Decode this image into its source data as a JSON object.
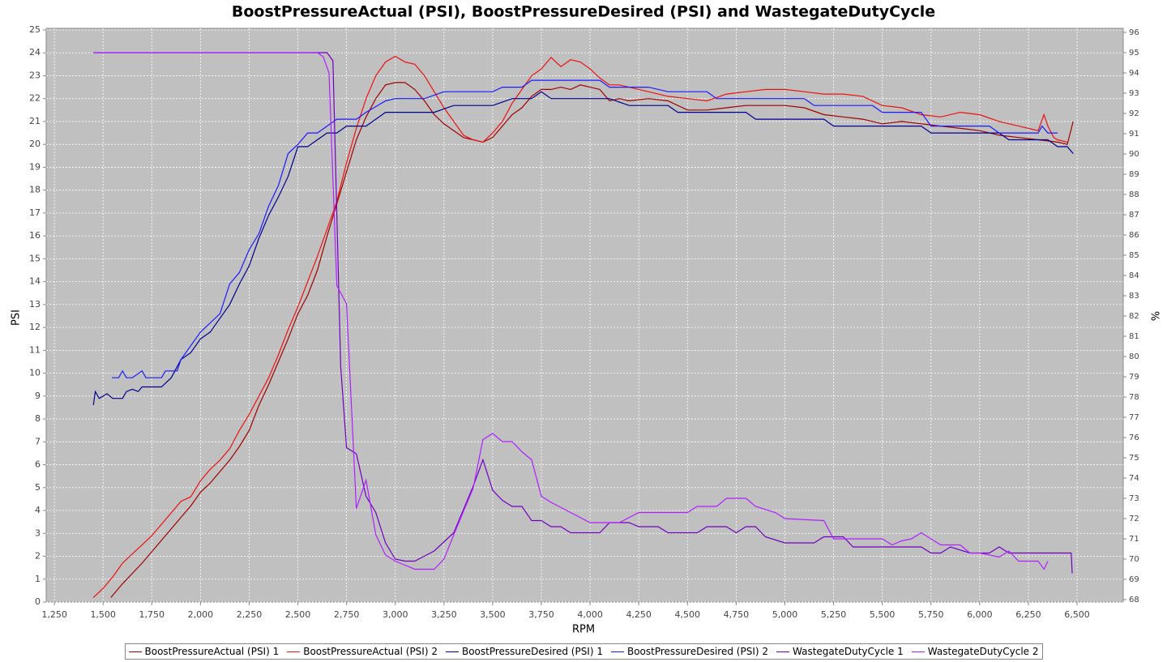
{
  "chart_data": {
    "type": "line",
    "title": "BoostPressureActual (PSI), BoostPressureDesired (PSI) and WastegateDutyCycle",
    "x_label": "RPM",
    "y_label": "PSI",
    "y2_label": "%",
    "xlim": [
      1208,
      6737
    ],
    "ylim": [
      0,
      25.07
    ],
    "y2lim": [
      67.88,
      96.2
    ],
    "grid": true,
    "xticks": [
      {
        "value": 1250,
        "label": "1,250"
      },
      {
        "value": 1500,
        "label": "1,500"
      },
      {
        "value": 1750,
        "label": "1,750"
      },
      {
        "value": 2000,
        "label": "2,000"
      },
      {
        "value": 2250,
        "label": "2,250"
      },
      {
        "value": 2500,
        "label": "2,500"
      },
      {
        "value": 2750,
        "label": "2,750"
      },
      {
        "value": 3000,
        "label": "3,000"
      },
      {
        "value": 3250,
        "label": "3,250"
      },
      {
        "value": 3500,
        "label": "3,500"
      },
      {
        "value": 3750,
        "label": "3,750"
      },
      {
        "value": 4000,
        "label": "4,000"
      },
      {
        "value": 4250,
        "label": "4,250"
      },
      {
        "value": 4500,
        "label": "4,500"
      },
      {
        "value": 4750,
        "label": "4,750"
      },
      {
        "value": 5000,
        "label": "5,000"
      },
      {
        "value": 5250,
        "label": "5,250"
      },
      {
        "value": 5500,
        "label": "5,500"
      },
      {
        "value": 5750,
        "label": "5,750"
      },
      {
        "value": 6000,
        "label": "6,000"
      },
      {
        "value": 6250,
        "label": "6,250"
      },
      {
        "value": 6500,
        "label": "6,500"
      }
    ],
    "yticks": [
      0,
      1,
      2,
      3,
      4,
      5,
      6,
      7,
      8,
      9,
      10,
      11,
      12,
      13,
      14,
      15,
      16,
      17,
      18,
      19,
      20,
      21,
      22,
      23,
      24,
      25
    ],
    "y2ticks": [
      68,
      69,
      70,
      71,
      72,
      73,
      74,
      75,
      76,
      77,
      78,
      79,
      80,
      81,
      82,
      83,
      84,
      85,
      86,
      87,
      88,
      89,
      90,
      91,
      92,
      93,
      94,
      95,
      96
    ],
    "series": [
      {
        "name": "BoostPressureActual (PSI) 1",
        "color": "#a00000",
        "x": [
          1540,
          1600,
          1700,
          1750,
          1800,
          1850,
          1900,
          1950,
          2000,
          2050,
          2100,
          2150,
          2200,
          2250,
          2300,
          2350,
          2400,
          2450,
          2500,
          2550,
          2600,
          2650,
          2700,
          2750,
          2800,
          2850,
          2900,
          2950,
          3000,
          3050,
          3100,
          3150,
          3200,
          3250,
          3300,
          3350,
          3400,
          3450,
          3500,
          3550,
          3600,
          3650,
          3700,
          3750,
          3800,
          3850,
          3900,
          3950,
          4000,
          4050,
          4100,
          4150,
          4200,
          4300,
          4400,
          4500,
          4600,
          4700,
          4800,
          4900,
          5000,
          5100,
          5200,
          5300,
          5400,
          5500,
          5600,
          5700,
          5800,
          5900,
          6000,
          6100,
          6200,
          6300,
          6400,
          6450,
          6480
        ],
        "values": [
          0.2,
          0.8,
          1.7,
          2.2,
          2.7,
          3.2,
          3.7,
          4.2,
          4.8,
          5.2,
          5.7,
          6.2,
          6.8,
          7.5,
          8.6,
          9.5,
          10.5,
          11.5,
          12.6,
          13.4,
          14.5,
          16.0,
          17.4,
          18.8,
          20.2,
          21.2,
          22.0,
          22.6,
          22.7,
          22.7,
          22.4,
          21.9,
          21.3,
          20.9,
          20.6,
          20.3,
          20.2,
          20.1,
          20.3,
          20.8,
          21.3,
          21.6,
          22.1,
          22.4,
          22.4,
          22.5,
          22.4,
          22.6,
          22.5,
          22.4,
          21.9,
          22.0,
          21.9,
          22.0,
          21.9,
          21.5,
          21.5,
          21.6,
          21.7,
          21.7,
          21.7,
          21.6,
          21.3,
          21.2,
          21.1,
          20.9,
          21.0,
          20.9,
          20.8,
          20.7,
          20.6,
          20.4,
          20.3,
          20.2,
          20.1,
          20.0,
          21.0
        ]
      },
      {
        "name": "BoostPressureActual (PSI) 2",
        "color": "#ee1111",
        "x": [
          1450,
          1500,
          1550,
          1600,
          1650,
          1700,
          1750,
          1800,
          1850,
          1900,
          1950,
          2000,
          2050,
          2100,
          2150,
          2200,
          2250,
          2300,
          2350,
          2400,
          2450,
          2500,
          2550,
          2600,
          2650,
          2700,
          2750,
          2800,
          2850,
          2900,
          2950,
          3000,
          3050,
          3100,
          3150,
          3200,
          3250,
          3300,
          3350,
          3400,
          3450,
          3500,
          3550,
          3600,
          3650,
          3700,
          3750,
          3800,
          3850,
          3900,
          3950,
          4000,
          4050,
          4100,
          4150,
          4200,
          4300,
          4400,
          4500,
          4600,
          4700,
          4800,
          4900,
          5000,
          5100,
          5200,
          5300,
          5400,
          5500,
          5600,
          5700,
          5800,
          5900,
          6000,
          6100,
          6200,
          6300,
          6330,
          6350,
          6380,
          6400,
          6450
        ],
        "values": [
          0.2,
          0.6,
          1.1,
          1.7,
          2.1,
          2.5,
          2.9,
          3.4,
          3.9,
          4.4,
          4.6,
          5.3,
          5.8,
          6.2,
          6.7,
          7.5,
          8.2,
          9.0,
          9.8,
          10.8,
          11.9,
          12.9,
          14.0,
          15.1,
          16.3,
          17.5,
          19.2,
          20.7,
          22.0,
          23.0,
          23.6,
          23.85,
          23.6,
          23.5,
          23.0,
          22.3,
          21.6,
          21.0,
          20.4,
          20.2,
          20.1,
          20.5,
          21.0,
          21.8,
          22.4,
          23.0,
          23.3,
          23.8,
          23.4,
          23.7,
          23.6,
          23.3,
          22.9,
          22.6,
          22.6,
          22.5,
          22.3,
          22.1,
          22.0,
          21.9,
          22.2,
          22.3,
          22.4,
          22.4,
          22.3,
          22.2,
          22.2,
          22.1,
          21.7,
          21.6,
          21.3,
          21.2,
          21.4,
          21.3,
          21.0,
          20.8,
          20.6,
          21.3,
          20.8,
          20.3,
          20.2,
          20.1
        ]
      },
      {
        "name": "BoostPressureDesired (PSI) 1",
        "color": "#000090",
        "x": [
          1450,
          1460,
          1480,
          1520,
          1550,
          1600,
          1620,
          1650,
          1680,
          1700,
          1800,
          1850,
          1900,
          1950,
          2000,
          2050,
          2100,
          2150,
          2200,
          2250,
          2300,
          2350,
          2400,
          2450,
          2500,
          2550,
          2600,
          2650,
          2700,
          2750,
          2850,
          2950,
          3000,
          3200,
          3300,
          3400,
          3500,
          3600,
          3700,
          3750,
          3800,
          4100,
          4200,
          4400,
          4450,
          4800,
          4850,
          5200,
          5250,
          5700,
          5750,
          6100,
          6150,
          6350,
          6400,
          6450,
          6480
        ],
        "values": [
          8.6,
          9.2,
          8.9,
          9.1,
          8.9,
          8.9,
          9.2,
          9.3,
          9.2,
          9.4,
          9.4,
          9.8,
          10.6,
          10.9,
          11.5,
          11.8,
          12.4,
          13.0,
          13.9,
          14.7,
          15.9,
          16.9,
          17.7,
          18.6,
          19.9,
          19.9,
          20.2,
          20.5,
          20.5,
          20.8,
          20.8,
          21.4,
          21.4,
          21.4,
          21.7,
          21.7,
          21.7,
          22.0,
          22.0,
          22.3,
          22.0,
          22.0,
          21.7,
          21.7,
          21.4,
          21.4,
          21.1,
          21.1,
          20.8,
          20.8,
          20.5,
          20.5,
          20.2,
          20.2,
          19.9,
          19.9,
          19.6
        ]
      },
      {
        "name": "BoostPressureDesired (PSI) 2",
        "color": "#1a1aff",
        "x": [
          1545,
          1580,
          1600,
          1620,
          1650,
          1700,
          1720,
          1800,
          1820,
          1880,
          1900,
          1950,
          2000,
          2050,
          2100,
          2150,
          2200,
          2250,
          2300,
          2350,
          2400,
          2450,
          2500,
          2550,
          2600,
          2650,
          2700,
          2800,
          2850,
          2950,
          3000,
          3150,
          3250,
          3500,
          3550,
          3650,
          3700,
          3900,
          4050,
          4100,
          4300,
          4400,
          4600,
          4650,
          5100,
          5150,
          5450,
          5500,
          5700,
          5750,
          6050,
          6100,
          6300,
          6320,
          6350,
          6400
        ],
        "values": [
          9.8,
          9.8,
          10.1,
          9.8,
          9.8,
          10.1,
          9.8,
          9.8,
          10.1,
          10.1,
          10.6,
          11.2,
          11.8,
          12.2,
          12.6,
          13.9,
          14.4,
          15.4,
          16.1,
          17.3,
          18.2,
          19.6,
          20.0,
          20.5,
          20.5,
          20.8,
          21.1,
          21.1,
          21.4,
          21.9,
          22.0,
          22.0,
          22.3,
          22.3,
          22.5,
          22.5,
          22.8,
          22.8,
          22.8,
          22.5,
          22.5,
          22.3,
          22.3,
          22.0,
          22.0,
          21.7,
          21.7,
          21.4,
          21.4,
          20.8,
          20.8,
          20.5,
          20.5,
          20.8,
          20.5,
          20.5
        ]
      },
      {
        "name": "WastegateDutyCycle 1",
        "color": "#7000c0",
        "axis": "y2",
        "x": [
          1450,
          2650,
          2680,
          2720,
          2750,
          2800,
          2850,
          2900,
          2950,
          3000,
          3050,
          3100,
          3200,
          3300,
          3400,
          3450,
          3500,
          3550,
          3600,
          3650,
          3700,
          3750,
          3800,
          3850,
          3900,
          4000,
          4050,
          4100,
          4200,
          4250,
          4350,
          4400,
          4550,
          4600,
          4700,
          4750,
          4800,
          4850,
          4900,
          5000,
          5100,
          5150,
          5200,
          5300,
          5350,
          5700,
          5750,
          5800,
          5850,
          5950,
          6050,
          6100,
          6150,
          6470,
          6475
        ],
        "values": [
          95,
          95,
          94.6,
          79.5,
          75.5,
          75.2,
          73.1,
          72.3,
          70.8,
          70.0,
          69.9,
          69.9,
          70.4,
          71.3,
          73.6,
          74.9,
          73.4,
          72.9,
          72.6,
          72.6,
          71.9,
          71.9,
          71.6,
          71.6,
          71.3,
          71.3,
          71.3,
          71.8,
          71.8,
          71.6,
          71.6,
          71.3,
          71.3,
          71.6,
          71.6,
          71.3,
          71.6,
          71.6,
          71.1,
          70.8,
          70.8,
          70.8,
          71.1,
          71.1,
          70.6,
          70.6,
          70.3,
          70.3,
          70.6,
          70.3,
          70.3,
          70.6,
          70.3,
          70.3,
          69.3
        ]
      },
      {
        "name": "WastegateDutyCycle 2",
        "color": "#b020ff",
        "axis": "y2",
        "x": [
          1450,
          2600,
          2630,
          2660,
          2700,
          2750,
          2800,
          2850,
          2900,
          2950,
          3000,
          3050,
          3100,
          3200,
          3250,
          3300,
          3400,
          3450,
          3500,
          3550,
          3600,
          3650,
          3700,
          3750,
          3800,
          3900,
          4000,
          4100,
          4150,
          4250,
          4500,
          4550,
          4650,
          4700,
          4800,
          4850,
          4950,
          5000,
          5200,
          5250,
          5500,
          5550,
          5600,
          5650,
          5700,
          5800,
          5900,
          5950,
          6000,
          6100,
          6150,
          6200,
          6300,
          6330,
          6350
        ],
        "values": [
          95,
          95,
          94.8,
          94.0,
          83.5,
          82.6,
          72.5,
          73.9,
          71.2,
          70.2,
          69.9,
          69.7,
          69.5,
          69.5,
          70.0,
          71.2,
          73.5,
          75.9,
          76.2,
          75.8,
          75.8,
          75.3,
          74.9,
          73.1,
          72.8,
          72.3,
          71.8,
          71.8,
          71.8,
          72.3,
          72.3,
          72.6,
          72.6,
          73.0,
          73.0,
          72.6,
          72.3,
          72.0,
          71.9,
          71.0,
          71.0,
          70.7,
          70.9,
          71.0,
          71.3,
          70.7,
          70.7,
          70.3,
          70.3,
          70.1,
          70.4,
          69.9,
          69.9,
          69.5,
          69.9
        ]
      }
    ]
  }
}
